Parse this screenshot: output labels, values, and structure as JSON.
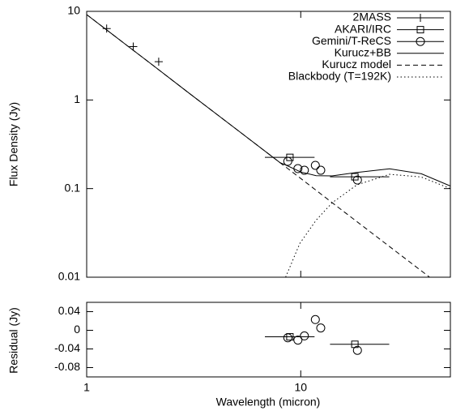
{
  "chart_data": [
    {
      "type": "line",
      "ylabel": "Flux Density (Jy)",
      "log_x": true,
      "log_y": true,
      "xlim": [
        1,
        50
      ],
      "ylim": [
        0.01,
        10
      ],
      "yticks": [
        0.01,
        0.1,
        1,
        10
      ],
      "legend": "upper right",
      "series": [
        {
          "name": "2MASS",
          "color": "#000000",
          "marker": "plus",
          "x": [
            1.24,
            1.65,
            2.17
          ],
          "values": [
            6.4,
            4.0,
            2.7
          ]
        },
        {
          "name": "AKARI/IRC",
          "color": "#000000",
          "marker": "square",
          "x": [
            8.9,
            17.9
          ],
          "values": [
            0.225,
            0.136
          ],
          "x_min": [
            6.8,
            13.7
          ],
          "x_max": [
            11.6,
            25.9
          ]
        },
        {
          "name": "Gemini/T-ReCS",
          "color": "#000000",
          "marker": "circle",
          "x": [
            8.7,
            9.7,
            10.4,
            11.7,
            12.4,
            18.4
          ],
          "values": [
            0.203,
            0.168,
            0.161,
            0.183,
            0.161,
            0.125
          ]
        },
        {
          "name": "Kurucz+BB",
          "color": "#000000",
          "dash": "solid",
          "x": [
            1,
            1.5,
            2,
            3,
            5,
            8,
            8.5,
            10,
            11.8,
            14,
            18.3,
            26,
            36.6,
            50
          ],
          "values": [
            9.2,
            4.34,
            2.55,
            1.2,
            0.468,
            0.196,
            0.185,
            0.154,
            0.14,
            0.139,
            0.152,
            0.167,
            0.147,
            0.107
          ]
        },
        {
          "name": "Kurucz model",
          "color": "#000000",
          "dash": "dashed",
          "x": [
            1,
            1.5,
            2,
            3,
            5,
            8,
            10,
            15,
            20,
            30,
            40
          ],
          "values": [
            9.2,
            4.34,
            2.55,
            1.2,
            0.468,
            0.196,
            0.13,
            0.0612,
            0.036,
            0.017,
            0.01
          ]
        },
        {
          "name": "Blackbody (T=192K)",
          "color": "#000000",
          "dash": "dotted",
          "x": [
            8.5,
            9.9,
            11.8,
            14,
            18.3,
            26,
            36.6,
            50
          ],
          "values": [
            0.01,
            0.024,
            0.044,
            0.069,
            0.11,
            0.145,
            0.135,
            0.1
          ]
        }
      ]
    },
    {
      "type": "scatter",
      "ylabel": "Residual (Jy)",
      "xlabel": "Wavelength (micron)",
      "log_x": true,
      "xlim": [
        1,
        50
      ],
      "ylim": [
        -0.1,
        0.06
      ],
      "xticks": [
        1,
        10
      ],
      "yticks": [
        0.04,
        0,
        -0.04,
        -0.08
      ],
      "series": [
        {
          "color": "#000000",
          "marker": "square",
          "x": [
            8.9,
            17.9
          ],
          "values": [
            -0.014,
            -0.03
          ],
          "x_min": [
            6.8,
            13.7
          ],
          "x_max": [
            11.6,
            25.9
          ]
        },
        {
          "color": "#000000",
          "marker": "circle",
          "x": [
            8.7,
            9.7,
            10.4,
            11.7,
            12.4,
            18.4
          ],
          "values": [
            -0.016,
            -0.021,
            -0.012,
            0.023,
            0.005,
            -0.043
          ]
        }
      ]
    }
  ]
}
